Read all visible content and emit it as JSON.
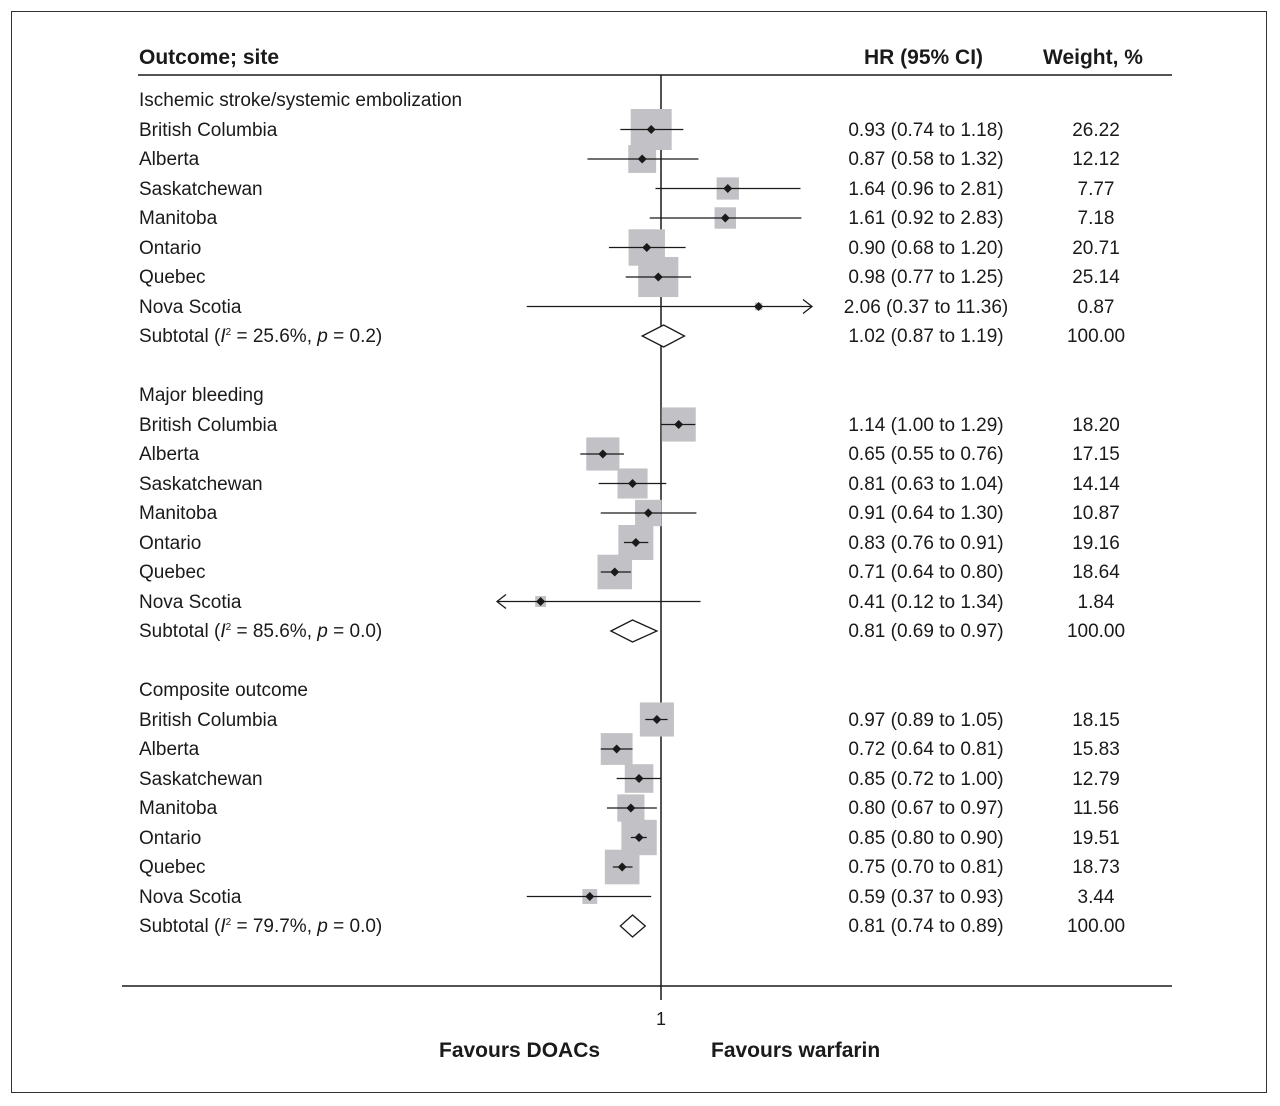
{
  "header": {
    "outcome_site": "Outcome; site",
    "hr": "HR (95% CI)",
    "weight": "Weight, %"
  },
  "footer": {
    "left": "Favours  DOACs",
    "right": "Favours  warfarin",
    "tick_label": "1"
  },
  "chart_data": {
    "type": "forest",
    "null_line": 1,
    "x_scale": "log",
    "groups": [
      {
        "title": "Ischemic stroke/systemic embolization",
        "rows": [
          {
            "site": "British Columbia",
            "hr": 0.93,
            "lo": 0.74,
            "hi": 1.18,
            "text": "0.93 (0.74 to 1.18)",
            "weight": 26.22,
            "weight_text": "26.22"
          },
          {
            "site": "Alberta",
            "hr": 0.87,
            "lo": 0.58,
            "hi": 1.32,
            "text": "0.87 (0.58 to 1.32)",
            "weight": 12.12,
            "weight_text": "12.12"
          },
          {
            "site": "Saskatchewan",
            "hr": 1.64,
            "lo": 0.96,
            "hi": 2.81,
            "text": "1.64 (0.96 to 2.81)",
            "weight": 7.77,
            "weight_text": "7.77"
          },
          {
            "site": "Manitoba",
            "hr": 1.61,
            "lo": 0.92,
            "hi": 2.83,
            "text": "1.61 (0.92 to 2.83)",
            "weight": 7.18,
            "weight_text": "7.18"
          },
          {
            "site": "Ontario",
            "hr": 0.9,
            "lo": 0.68,
            "hi": 1.2,
            "text": "0.90 (0.68 to 1.20)",
            "weight": 20.71,
            "weight_text": "20.71"
          },
          {
            "site": "Quebec",
            "hr": 0.98,
            "lo": 0.77,
            "hi": 1.25,
            "text": "0.98 (0.77 to 1.25)",
            "weight": 25.14,
            "weight_text": "25.14"
          },
          {
            "site": "Nova Scotia",
            "hr": 2.06,
            "lo": 0.37,
            "hi": 11.36,
            "text": "2.06 (0.37 to 11.36)",
            "weight": 0.87,
            "weight_text": "0.87"
          }
        ],
        "subtotal": {
          "label_prefix": "Subtotal  (",
          "i2_symbol": "I",
          "i2_sup": "2",
          "i2_rest": " = 25.6%, ",
          "p_symbol": "p",
          "p_rest": " = 0.2)",
          "hr": 1.02,
          "lo": 0.87,
          "hi": 1.19,
          "text": "1.02 (0.87 to 1.19)",
          "weight_text": "100.00"
        }
      },
      {
        "title": "Major bleeding",
        "rows": [
          {
            "site": "British Columbia",
            "hr": 1.14,
            "lo": 1.0,
            "hi": 1.29,
            "text": "1.14 (1.00 to 1.29)",
            "weight": 18.2,
            "weight_text": "18.20"
          },
          {
            "site": "Alberta",
            "hr": 0.65,
            "lo": 0.55,
            "hi": 0.76,
            "text": "0.65 (0.55 to 0.76)",
            "weight": 17.15,
            "weight_text": "17.15"
          },
          {
            "site": "Saskatchewan",
            "hr": 0.81,
            "lo": 0.63,
            "hi": 1.04,
            "text": "0.81 (0.63 to 1.04)",
            "weight": 14.14,
            "weight_text": "14.14"
          },
          {
            "site": "Manitoba",
            "hr": 0.91,
            "lo": 0.64,
            "hi": 1.3,
            "text": "0.91 (0.64 to 1.30)",
            "weight": 10.87,
            "weight_text": "10.87"
          },
          {
            "site": "Ontario",
            "hr": 0.83,
            "lo": 0.76,
            "hi": 0.91,
            "text": "0.83 (0.76 to 0.91)",
            "weight": 19.16,
            "weight_text": "19.16"
          },
          {
            "site": "Quebec",
            "hr": 0.71,
            "lo": 0.64,
            "hi": 0.8,
            "text": "0.71 (0.64 to 0.80)",
            "weight": 18.64,
            "weight_text": "18.64"
          },
          {
            "site": "Nova Scotia",
            "hr": 0.41,
            "lo": 0.12,
            "hi": 1.34,
            "text": "0.41 (0.12 to 1.34)",
            "weight": 1.84,
            "weight_text": "1.84"
          }
        ],
        "subtotal": {
          "label_prefix": "Subtotal  (",
          "i2_symbol": "I",
          "i2_sup": "2",
          "i2_rest": " = 85.6%, ",
          "p_symbol": "p",
          "p_rest": " = 0.0)",
          "hr": 0.81,
          "lo": 0.69,
          "hi": 0.97,
          "text": "0.81 (0.69 to 0.97)",
          "weight_text": "100.00"
        }
      },
      {
        "title": "Composite outcome",
        "rows": [
          {
            "site": "British Columbia",
            "hr": 0.97,
            "lo": 0.89,
            "hi": 1.05,
            "text": "0.97 (0.89 to 1.05)",
            "weight": 18.15,
            "weight_text": "18.15"
          },
          {
            "site": "Alberta",
            "hr": 0.72,
            "lo": 0.64,
            "hi": 0.81,
            "text": "0.72 (0.64 to 0.81)",
            "weight": 15.83,
            "weight_text": "15.83"
          },
          {
            "site": "Saskatchewan",
            "hr": 0.85,
            "lo": 0.72,
            "hi": 1.0,
            "text": "0.85 (0.72 to 1.00)",
            "weight": 12.79,
            "weight_text": "12.79"
          },
          {
            "site": "Manitoba",
            "hr": 0.8,
            "lo": 0.67,
            "hi": 0.97,
            "text": "0.80 (0.67 to 0.97)",
            "weight": 11.56,
            "weight_text": "11.56"
          },
          {
            "site": "Ontario",
            "hr": 0.85,
            "lo": 0.8,
            "hi": 0.9,
            "text": "0.85 (0.80 to 0.90)",
            "weight": 19.51,
            "weight_text": "19.51"
          },
          {
            "site": "Quebec",
            "hr": 0.75,
            "lo": 0.7,
            "hi": 0.81,
            "text": "0.75 (0.70 to 0.81)",
            "weight": 18.73,
            "weight_text": "18.73"
          },
          {
            "site": "Nova Scotia",
            "hr": 0.59,
            "lo": 0.37,
            "hi": 0.93,
            "text": "0.59 (0.37 to 0.93)",
            "weight": 3.44,
            "weight_text": "3.44"
          }
        ],
        "subtotal": {
          "label_prefix": "Subtotal  (",
          "i2_symbol": "I",
          "i2_sup": "2",
          "i2_rest": " = 79.7%, ",
          "p_symbol": "p",
          "p_rest": " = 0.0)",
          "hr": 0.81,
          "lo": 0.74,
          "hi": 0.89,
          "text": "0.81 (0.74 to 0.89)",
          "weight_text": "100.00"
        }
      }
    ]
  },
  "colors": {
    "weight_box": "#c2c2c6",
    "line": "#1a1a1a",
    "marker": "#1a1a1a"
  }
}
